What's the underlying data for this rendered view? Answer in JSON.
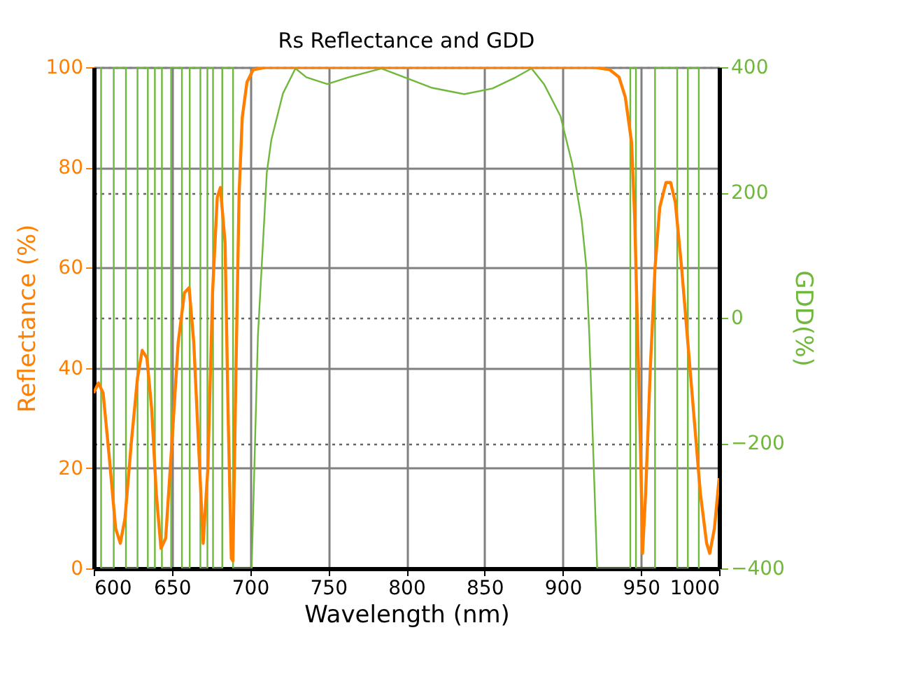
{
  "chart_data": {
    "type": "line",
    "title": "Rs Reflectance and GDD",
    "xlabel": "Wavelength (nm)",
    "ylabel": "Reflectance (%)",
    "y2label": "GDD(%)",
    "xlim": [
      600,
      1000
    ],
    "xticks": [
      600,
      650,
      700,
      750,
      800,
      850,
      900,
      950,
      1000
    ],
    "ylim": [
      0,
      100
    ],
    "yticks": [
      0,
      20,
      40,
      60,
      80,
      100
    ],
    "y2lim": [
      -400,
      400
    ],
    "y2ticks": [
      -400,
      -200,
      0,
      200,
      400
    ],
    "grid": true,
    "series": [
      {
        "color": "#ff8000",
        "x": [
          600,
          603,
          606,
          610,
          614,
          617,
          620,
          624,
          628,
          631,
          634,
          637,
          640,
          643,
          646,
          650,
          654,
          658,
          661,
          664,
          667,
          670,
          673,
          676,
          679,
          681,
          684,
          686,
          688,
          689,
          691,
          693,
          695,
          698,
          702,
          710,
          920,
          930,
          936,
          940,
          944,
          946,
          948,
          950,
          951,
          953,
          956,
          959,
          962,
          966,
          969,
          972,
          976,
          980,
          984,
          988,
          992,
          994,
          997,
          1000
        ],
        "values": [
          35,
          37,
          35,
          22,
          8,
          5,
          10,
          25,
          38,
          43.5,
          42,
          32,
          15,
          4,
          6,
          25,
          45,
          55,
          56,
          45,
          25,
          5,
          20,
          55,
          74,
          76,
          65,
          30,
          2,
          1.5,
          40,
          75,
          90,
          97,
          99.5,
          100,
          100,
          99.5,
          98,
          94,
          85,
          70,
          45,
          20,
          3,
          15,
          40,
          60,
          72,
          77,
          77,
          73,
          60,
          45,
          30,
          15,
          5,
          3,
          8,
          18
        ]
      },
      {
        "color": "#70b83c",
        "axis": "y2",
        "x": [
          604.7,
          604.7,
          612.8,
          612.8,
          620.6,
          620.6,
          628,
          628,
          634.6,
          634.6,
          639.1,
          639.1,
          643.6,
          643.6,
          649.5,
          649.5,
          656.4,
          656.4,
          661.4,
          661.4,
          668.2,
          668.2,
          672.7,
          672.7,
          676.3,
          676.3,
          682.2,
          682.2,
          689.1,
          689.1,
          701,
          705,
          710.7,
          713.6,
          721,
          729,
          736,
          749.4,
          763,
          784,
          798.7,
          816.5,
          837,
          855,
          870,
          880,
          888,
          898.5,
          906,
          912,
          915,
          917,
          922,
          943.2,
          943.2,
          946.8,
          946.8,
          959,
          959,
          973.2,
          973.2,
          980,
          980,
          987,
          987
        ],
        "values": [
          400,
          -400,
          -400,
          400,
          400,
          -400,
          -400,
          400,
          400,
          -400,
          -400,
          400,
          400,
          -400,
          -400,
          400,
          400,
          -400,
          -400,
          400,
          400,
          -400,
          -400,
          400,
          400,
          -400,
          -400,
          400,
          400,
          -400,
          -400,
          -29,
          232,
          284,
          358,
          398,
          384,
          373,
          384,
          398,
          384,
          367,
          357,
          366,
          384,
          398,
          373,
          322,
          246,
          157,
          83,
          -29,
          -400,
          -400,
          400,
          400,
          -400,
          -400,
          400,
          400,
          -400,
          -400,
          400,
          400,
          -400
        ]
      }
    ]
  }
}
